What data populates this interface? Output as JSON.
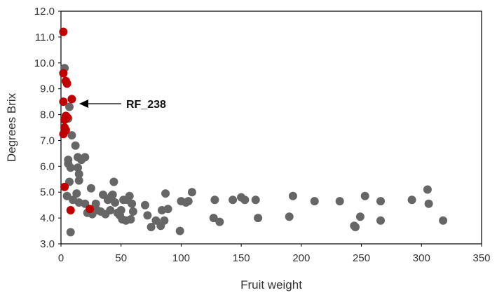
{
  "chart_data": {
    "type": "scatter",
    "title": "",
    "xlabel": "Fruit weight",
    "ylabel": "Degrees Brix",
    "xlim": [
      0,
      350
    ],
    "ylim": [
      3.0,
      12.0
    ],
    "x_ticks": [
      "0",
      "50",
      "100",
      "150",
      "200",
      "250",
      "300",
      "350"
    ],
    "y_ticks": [
      "3.0",
      "4.0",
      "5.0",
      "6.0",
      "7.0",
      "8.0",
      "9.0",
      "10.0",
      "11.0",
      "12.0"
    ],
    "grid": false,
    "legend": "none",
    "annotation": {
      "label": "RF_238",
      "x": 9,
      "y": 8.6
    },
    "series": [
      {
        "color": "#666666",
        "points": [
          [
            3,
            9.8
          ],
          [
            7,
            8.3
          ],
          [
            6,
            7.85
          ],
          [
            9,
            7.2
          ],
          [
            12,
            6.8
          ],
          [
            6,
            6.25
          ],
          [
            6,
            6.1
          ],
          [
            8,
            5.95
          ],
          [
            14,
            6.35
          ],
          [
            20,
            6.35
          ],
          [
            17,
            6.25
          ],
          [
            14,
            5.95
          ],
          [
            15,
            5.7
          ],
          [
            15,
            5.45
          ],
          [
            7,
            5.4
          ],
          [
            25,
            5.15
          ],
          [
            44,
            5.4
          ],
          [
            13,
            4.95
          ],
          [
            5,
            4.85
          ],
          [
            10,
            4.7
          ],
          [
            15,
            4.6
          ],
          [
            20,
            4.55
          ],
          [
            8,
            3.45
          ],
          [
            22,
            4.2
          ],
          [
            26,
            4.15
          ],
          [
            29,
            4.55
          ],
          [
            30,
            4.3
          ],
          [
            33,
            4.25
          ],
          [
            35,
            4.9
          ],
          [
            37,
            4.15
          ],
          [
            39,
            4.7
          ],
          [
            41,
            4.3
          ],
          [
            42,
            4.85
          ],
          [
            43,
            4.9
          ],
          [
            45,
            4.6
          ],
          [
            47,
            4.2
          ],
          [
            49,
            4.1
          ],
          [
            50,
            4.3
          ],
          [
            51,
            3.95
          ],
          [
            52,
            4.7
          ],
          [
            54,
            3.9
          ],
          [
            55,
            4.7
          ],
          [
            57,
            4.85
          ],
          [
            58,
            3.95
          ],
          [
            59,
            4.55
          ],
          [
            60,
            4.25
          ],
          [
            70,
            4.5
          ],
          [
            72,
            4.1
          ],
          [
            75,
            3.65
          ],
          [
            79,
            3.9
          ],
          [
            83,
            3.7
          ],
          [
            84,
            4.3
          ],
          [
            86,
            3.9
          ],
          [
            87,
            4.95
          ],
          [
            89,
            4.35
          ],
          [
            99,
            3.5
          ],
          [
            100,
            4.65
          ],
          [
            104,
            4.6
          ],
          [
            106,
            4.65
          ],
          [
            109,
            5.0
          ],
          [
            127,
            4.0
          ],
          [
            128,
            4.7
          ],
          [
            132,
            3.85
          ],
          [
            143,
            4.7
          ],
          [
            150,
            4.8
          ],
          [
            153,
            4.7
          ],
          [
            162,
            4.7
          ],
          [
            164,
            4.0
          ],
          [
            190,
            4.05
          ],
          [
            193,
            4.85
          ],
          [
            211,
            4.65
          ],
          [
            232,
            4.65
          ],
          [
            244,
            3.7
          ],
          [
            245,
            3.65
          ],
          [
            249,
            4.05
          ],
          [
            253,
            4.85
          ],
          [
            266,
            4.65
          ],
          [
            266,
            3.9
          ],
          [
            292,
            4.7
          ],
          [
            305,
            5.1
          ],
          [
            306,
            4.55
          ],
          [
            318,
            3.9
          ]
        ]
      },
      {
        "color": "#c00000",
        "points": [
          [
            2,
            11.2
          ],
          [
            2,
            9.6
          ],
          [
            4,
            9.3
          ],
          [
            5,
            9.2
          ],
          [
            2,
            8.5
          ],
          [
            9,
            8.6
          ],
          [
            4,
            7.95
          ],
          [
            3,
            7.8
          ],
          [
            5,
            7.9
          ],
          [
            3,
            7.5
          ],
          [
            4,
            7.4
          ],
          [
            2,
            7.25
          ],
          [
            3,
            5.2
          ],
          [
            8,
            4.3
          ],
          [
            24,
            4.35
          ]
        ]
      }
    ]
  }
}
